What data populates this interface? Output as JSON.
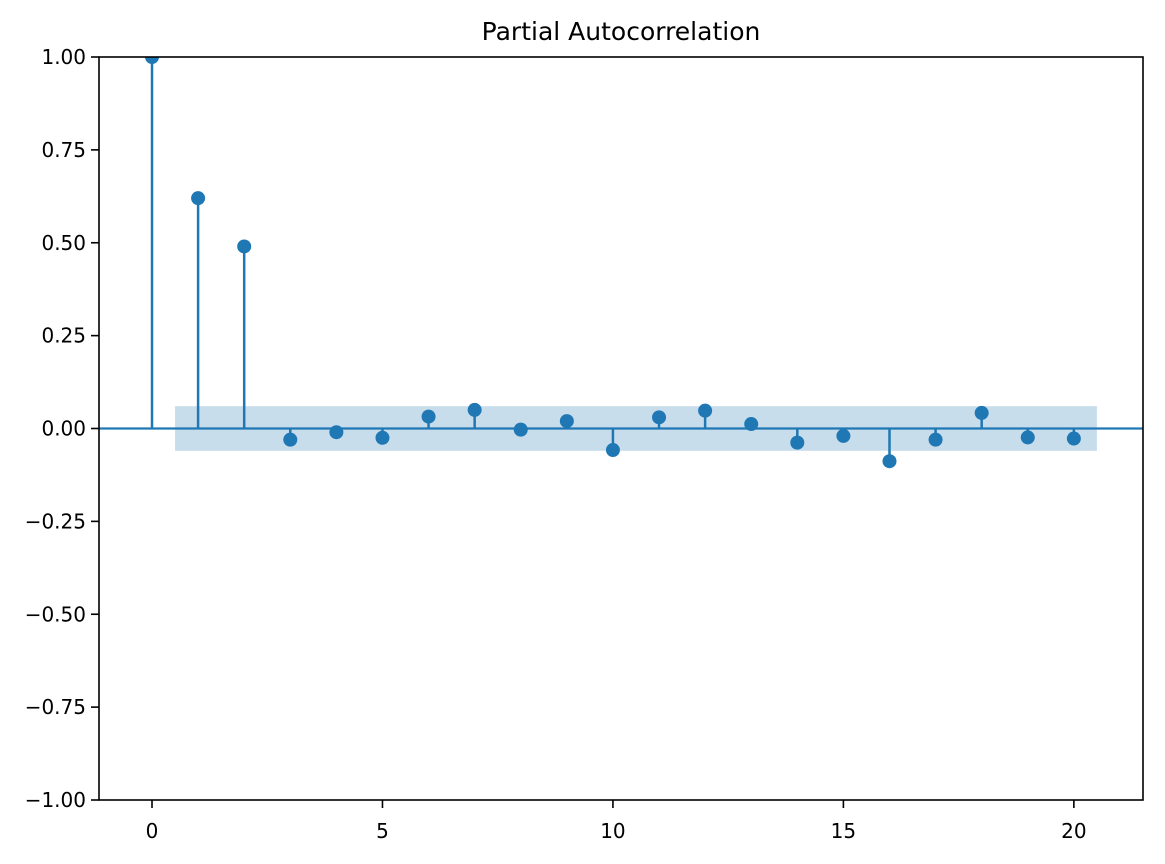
{
  "chart_data": {
    "type": "stem",
    "title": "Partial Autocorrelation",
    "x": [
      0,
      1,
      2,
      3,
      4,
      5,
      6,
      7,
      8,
      9,
      10,
      11,
      12,
      13,
      14,
      15,
      16,
      17,
      18,
      19,
      20
    ],
    "values": [
      1.0,
      0.62,
      0.49,
      -0.03,
      -0.01,
      -0.025,
      0.032,
      0.05,
      -0.003,
      0.02,
      -0.058,
      0.03,
      0.048,
      0.012,
      -0.038,
      -0.02,
      -0.088,
      -0.03,
      0.042,
      -0.024,
      -0.027
    ],
    "xlabel": "",
    "ylabel": "",
    "xlim": [
      -1.15,
      21.5
    ],
    "ylim": [
      -1.0,
      1.0
    ],
    "xticks": [
      0,
      5,
      10,
      15,
      20
    ],
    "xtick_labels": [
      "0",
      "5",
      "10",
      "15",
      "20"
    ],
    "yticks": [
      -1.0,
      -0.75,
      -0.5,
      -0.25,
      0.0,
      0.25,
      0.5,
      0.75,
      1.0
    ],
    "ytick_labels": [
      "−1.00",
      "−0.75",
      "−0.50",
      "−0.25",
      "0.00",
      "0.25",
      "0.50",
      "0.75",
      "1.00"
    ],
    "confidence_band": {
      "x_start": 0.5,
      "x_end": 20.5,
      "y_low": -0.06,
      "y_high": 0.06
    },
    "zero_line_y": 0.0,
    "grid": false,
    "legend": "none",
    "colors": {
      "stem": "#1f77b4",
      "marker": "#1f77b4",
      "band": "#c7ddec",
      "axis": "#000000",
      "text": "#000000",
      "background": "#ffffff"
    }
  }
}
